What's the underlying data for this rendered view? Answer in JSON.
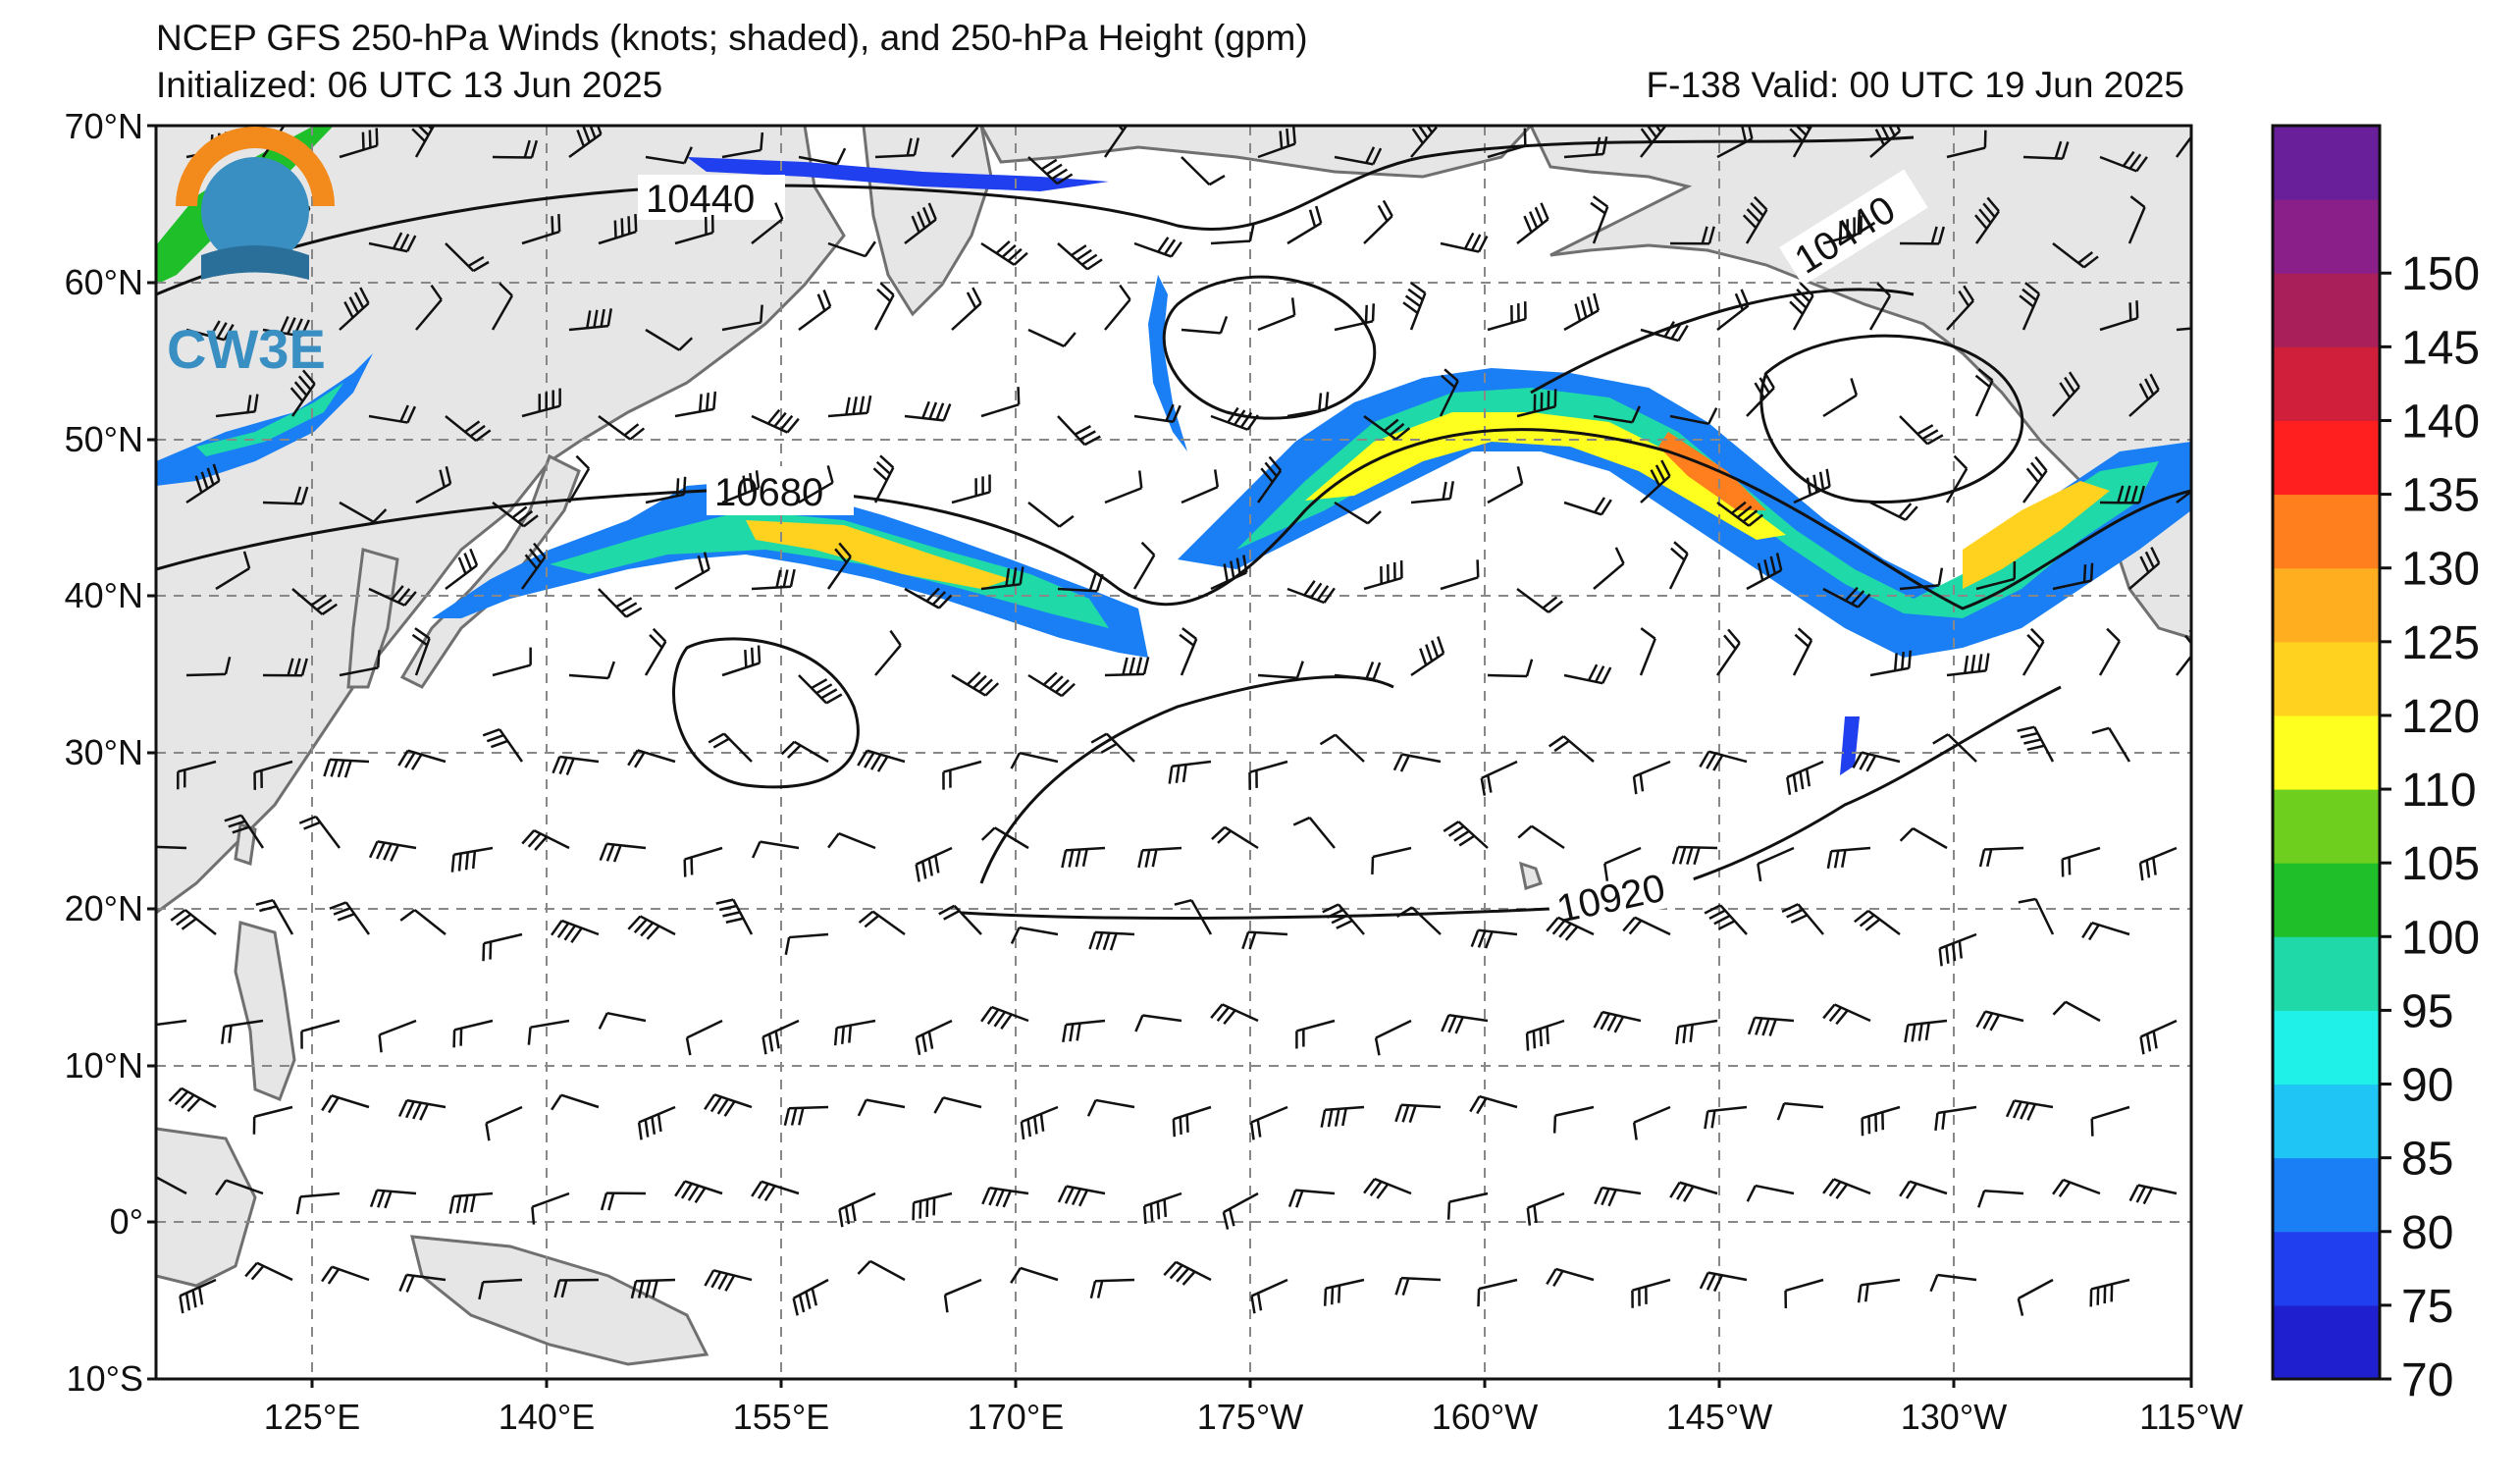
{
  "header": {
    "title": "NCEP GFS 250-hPa Winds (knots; shaded), and 250-hPa Height (gpm)",
    "initialized": "Initialized: 06 UTC 13 Jun 2025",
    "valid": "F-138  Valid: 00 UTC 19 Jun 2025"
  },
  "logo": {
    "text": "CW3E"
  },
  "axes": {
    "lat_labels": [
      "70°N",
      "60°N",
      "50°N",
      "40°N",
      "30°N",
      "20°N",
      "10°N",
      "0°",
      "10°S"
    ],
    "lon_labels": [
      "125°E",
      "140°E",
      "155°E",
      "170°E",
      "175°W",
      "160°W",
      "145°W",
      "130°W",
      "115°W"
    ]
  },
  "colorbar": {
    "labels": [
      "70",
      "75",
      "80",
      "85",
      "90",
      "95",
      "100",
      "105",
      "110",
      "120",
      "125",
      "130",
      "135",
      "140",
      "145",
      "150"
    ],
    "colors": [
      "#1f1fd0",
      "#2040f0",
      "#1a7ff5",
      "#1fc6f5",
      "#1ff0e8",
      "#1fd9a8",
      "#1fbf2a",
      "#6fcf1f",
      "#ffff1f",
      "#ffd21f",
      "#ffae1f",
      "#ff7f1f",
      "#ff1f1f",
      "#d01f3a",
      "#a81f5a",
      "#8a1f8a",
      "#6a1f9a"
    ]
  },
  "contour_labels": [
    "10440",
    "10440",
    "10680",
    "10920"
  ],
  "colors": {
    "land": "#e6e6e6",
    "ocean": "#ffffff",
    "grid": "#888888",
    "coast": "#707070"
  }
}
